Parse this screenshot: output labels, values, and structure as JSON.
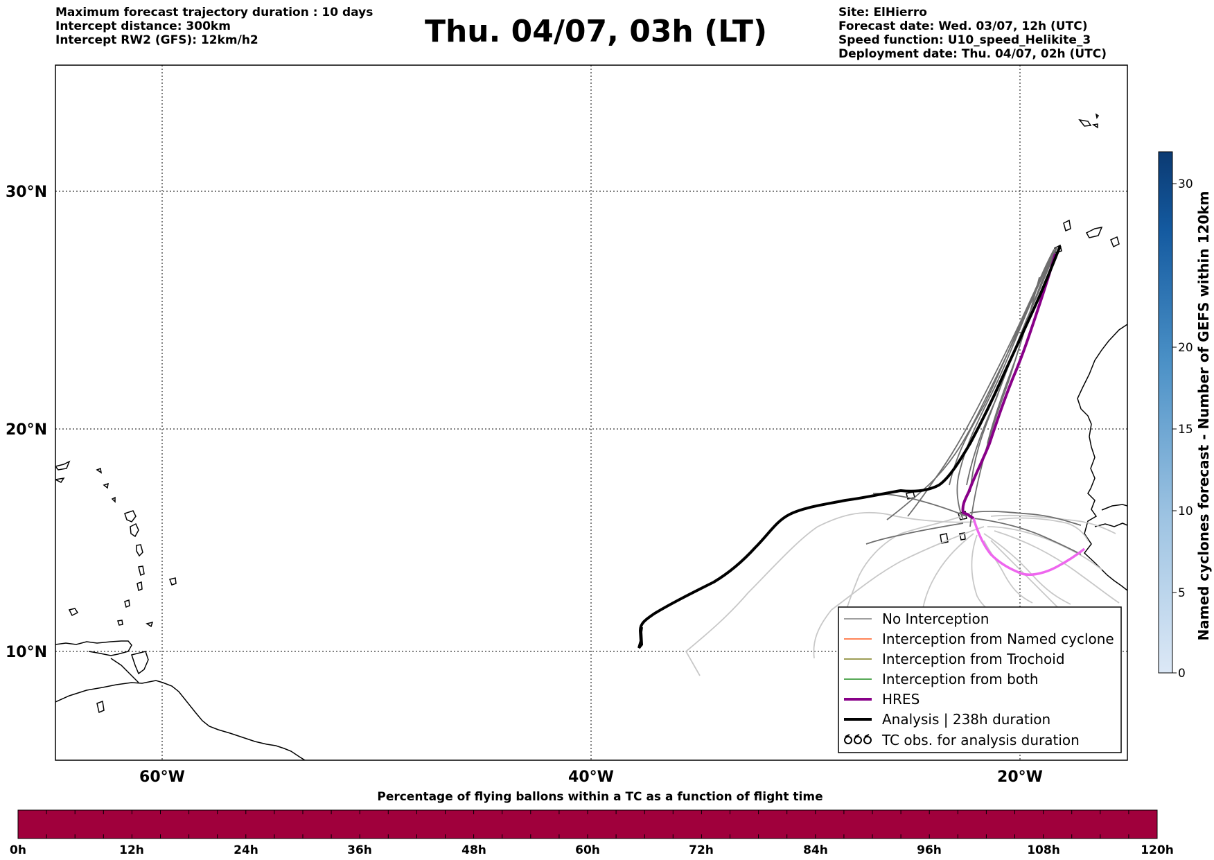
{
  "header": {
    "left": [
      "Maximum forecast trajectory duration : 10 days",
      "Intercept distance: 300km",
      "Intercept RW2 (GFS):  12km/h2"
    ],
    "title": "Thu. 04/07, 03h (LT)",
    "right": [
      "Site: ElHierro",
      "Forecast date: Wed. 03/07, 12h (UTC)",
      "Speed function: U10_speed_Helikite_3",
      "Deployment date: Thu. 04/07, 02h (UTC)"
    ]
  },
  "map": {
    "lat_labels": [
      "30°N",
      "20°N",
      "10°N"
    ],
    "lon_labels": [
      "60°W",
      "40°W",
      "20°W"
    ],
    "colors": {
      "hres": "#880088",
      "hres_light": "#ee66ee",
      "analysis": "#000000",
      "no_interception": "#6e6e6e",
      "ensemble_light": "#c8c8c8"
    }
  },
  "legend": {
    "items": [
      {
        "label": "No Interception",
        "color": "#808080"
      },
      {
        "label": "Interception from Named cyclone",
        "color": "#ff5a1e"
      },
      {
        "label": "Interception from Trochoid",
        "color": "#7d7d1e"
      },
      {
        "label": "Interception from both",
        "color": "#1e8c1e"
      },
      {
        "label": "HRES",
        "color": "#880088"
      },
      {
        "label": "Analysis | 238h duration",
        "color": "#000000"
      },
      {
        "label": "TC obs. for analysis duration",
        "icon": "cyclone-symbols-icon"
      }
    ]
  },
  "colorbar": {
    "label": "Named cyclones forecast - Number of GEFS within 120km",
    "ticks": [
      "0",
      "5",
      "10",
      "15",
      "20",
      "30"
    ]
  },
  "time_bar": {
    "title": "Percentage of flying ballons within a TC as a function of flight time",
    "ticks": [
      "0h",
      "12h",
      "24h",
      "36h",
      "48h",
      "60h",
      "72h",
      "84h",
      "96h",
      "108h",
      "120h"
    ],
    "fill_color": "#a0003c"
  }
}
